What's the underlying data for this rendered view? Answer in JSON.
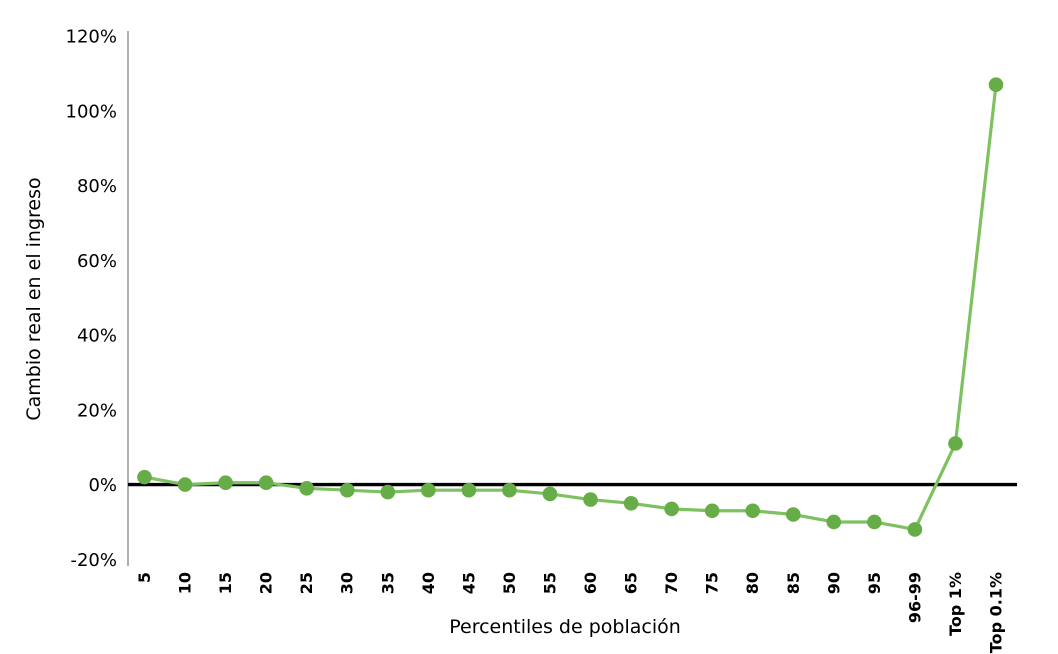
{
  "chart_data": {
    "type": "line",
    "title": "",
    "xlabel": "Percentiles de población",
    "ylabel": "Cambio real en el ingreso",
    "categories": [
      "5",
      "10",
      "15",
      "20",
      "25",
      "30",
      "35",
      "40",
      "45",
      "50",
      "55",
      "60",
      "65",
      "70",
      "75",
      "80",
      "85",
      "90",
      "95",
      "96-99",
      "Top 1%",
      "Top 0.1%"
    ],
    "values": [
      2,
      0,
      0.5,
      0.5,
      -1,
      -1.5,
      -2,
      -1.5,
      -1.5,
      -1.5,
      -2.5,
      -4,
      -5,
      -6.5,
      -7,
      -7,
      -8,
      -10,
      -10,
      -12,
      11,
      107
    ],
    "ylim": [
      -20,
      120
    ],
    "ytick_step": 20,
    "ytick_labels": [
      "-20%",
      "0%",
      "20%",
      "40%",
      "60%",
      "80%",
      "100%",
      "120%"
    ],
    "grid": false,
    "legend": "none",
    "colors": {
      "line": "#7dc160",
      "marker": "#66ad47",
      "zero_line": "#000000",
      "y_axis_line": "#9d9d9d",
      "text": "#000000",
      "background": "#ffffff"
    }
  }
}
